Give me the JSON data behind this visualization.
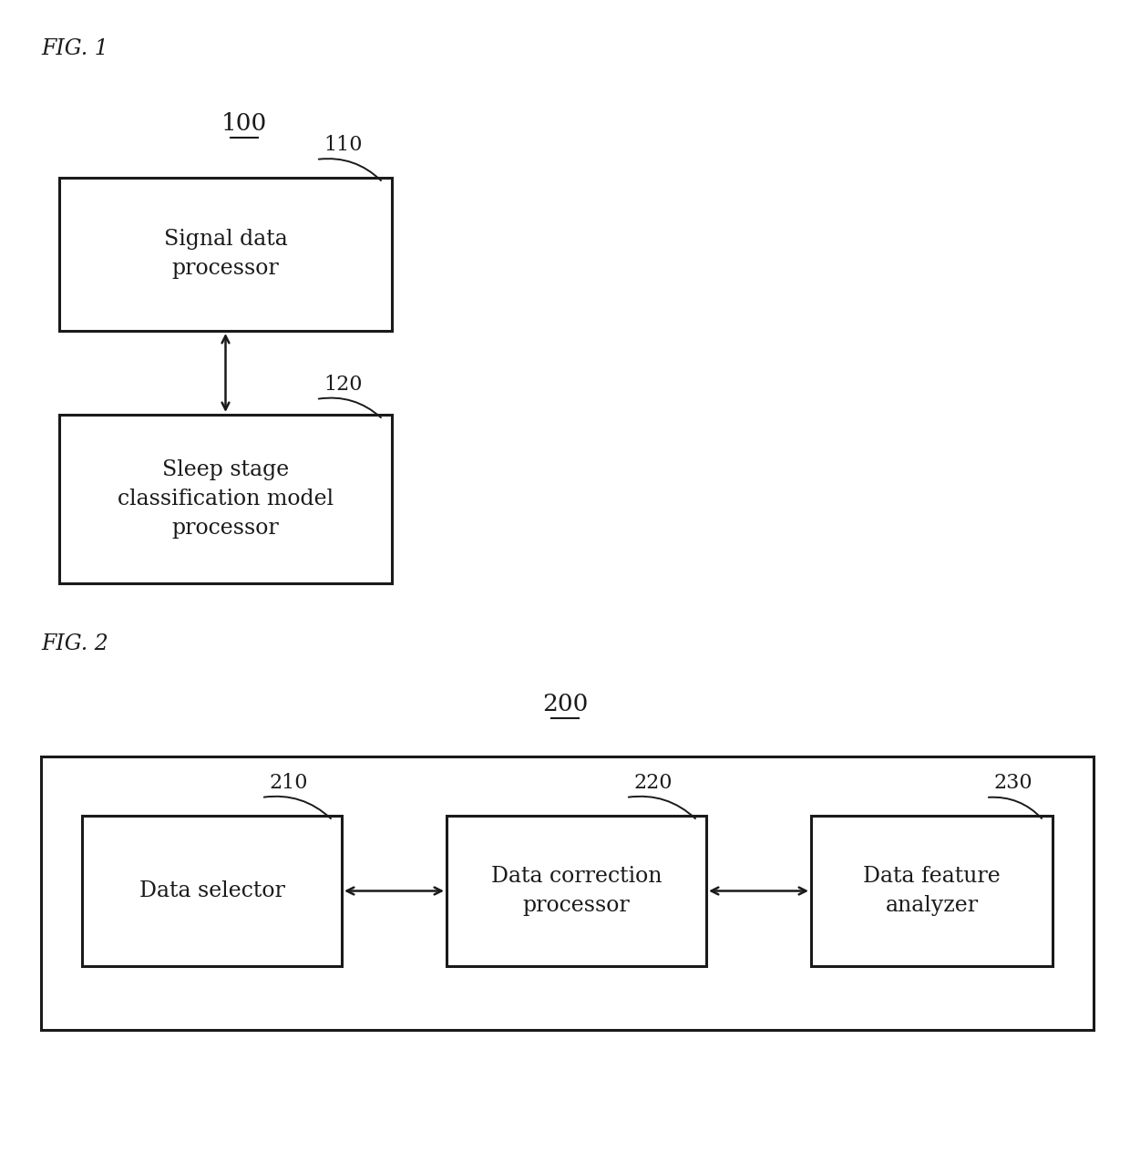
{
  "background_color": "#ffffff",
  "fig_width": 12.4,
  "fig_height": 12.87,
  "dpi": 100,
  "fig1_label": "FIG. 1",
  "fig2_label": "FIG. 2",
  "ref_100": "100",
  "ref_200": "200",
  "box1_label": "110",
  "box2_label": "120",
  "box3_label": "210",
  "box4_label": "220",
  "box5_label": "230",
  "box1_text": "Signal data\nprocessor",
  "box2_text": "Sleep stage\nclassification model\nprocessor",
  "box3_text": "Data selector",
  "box4_text": "Data correction\nprocessor",
  "box5_text": "Data feature\nanalyzer",
  "text_color": "#1a1a1a",
  "box_edge_color": "#1a1a1a",
  "arrow_color": "#1a1a1a",
  "font_size_label": 16,
  "font_size_box": 17,
  "font_size_ref": 19,
  "font_size_fig": 17
}
